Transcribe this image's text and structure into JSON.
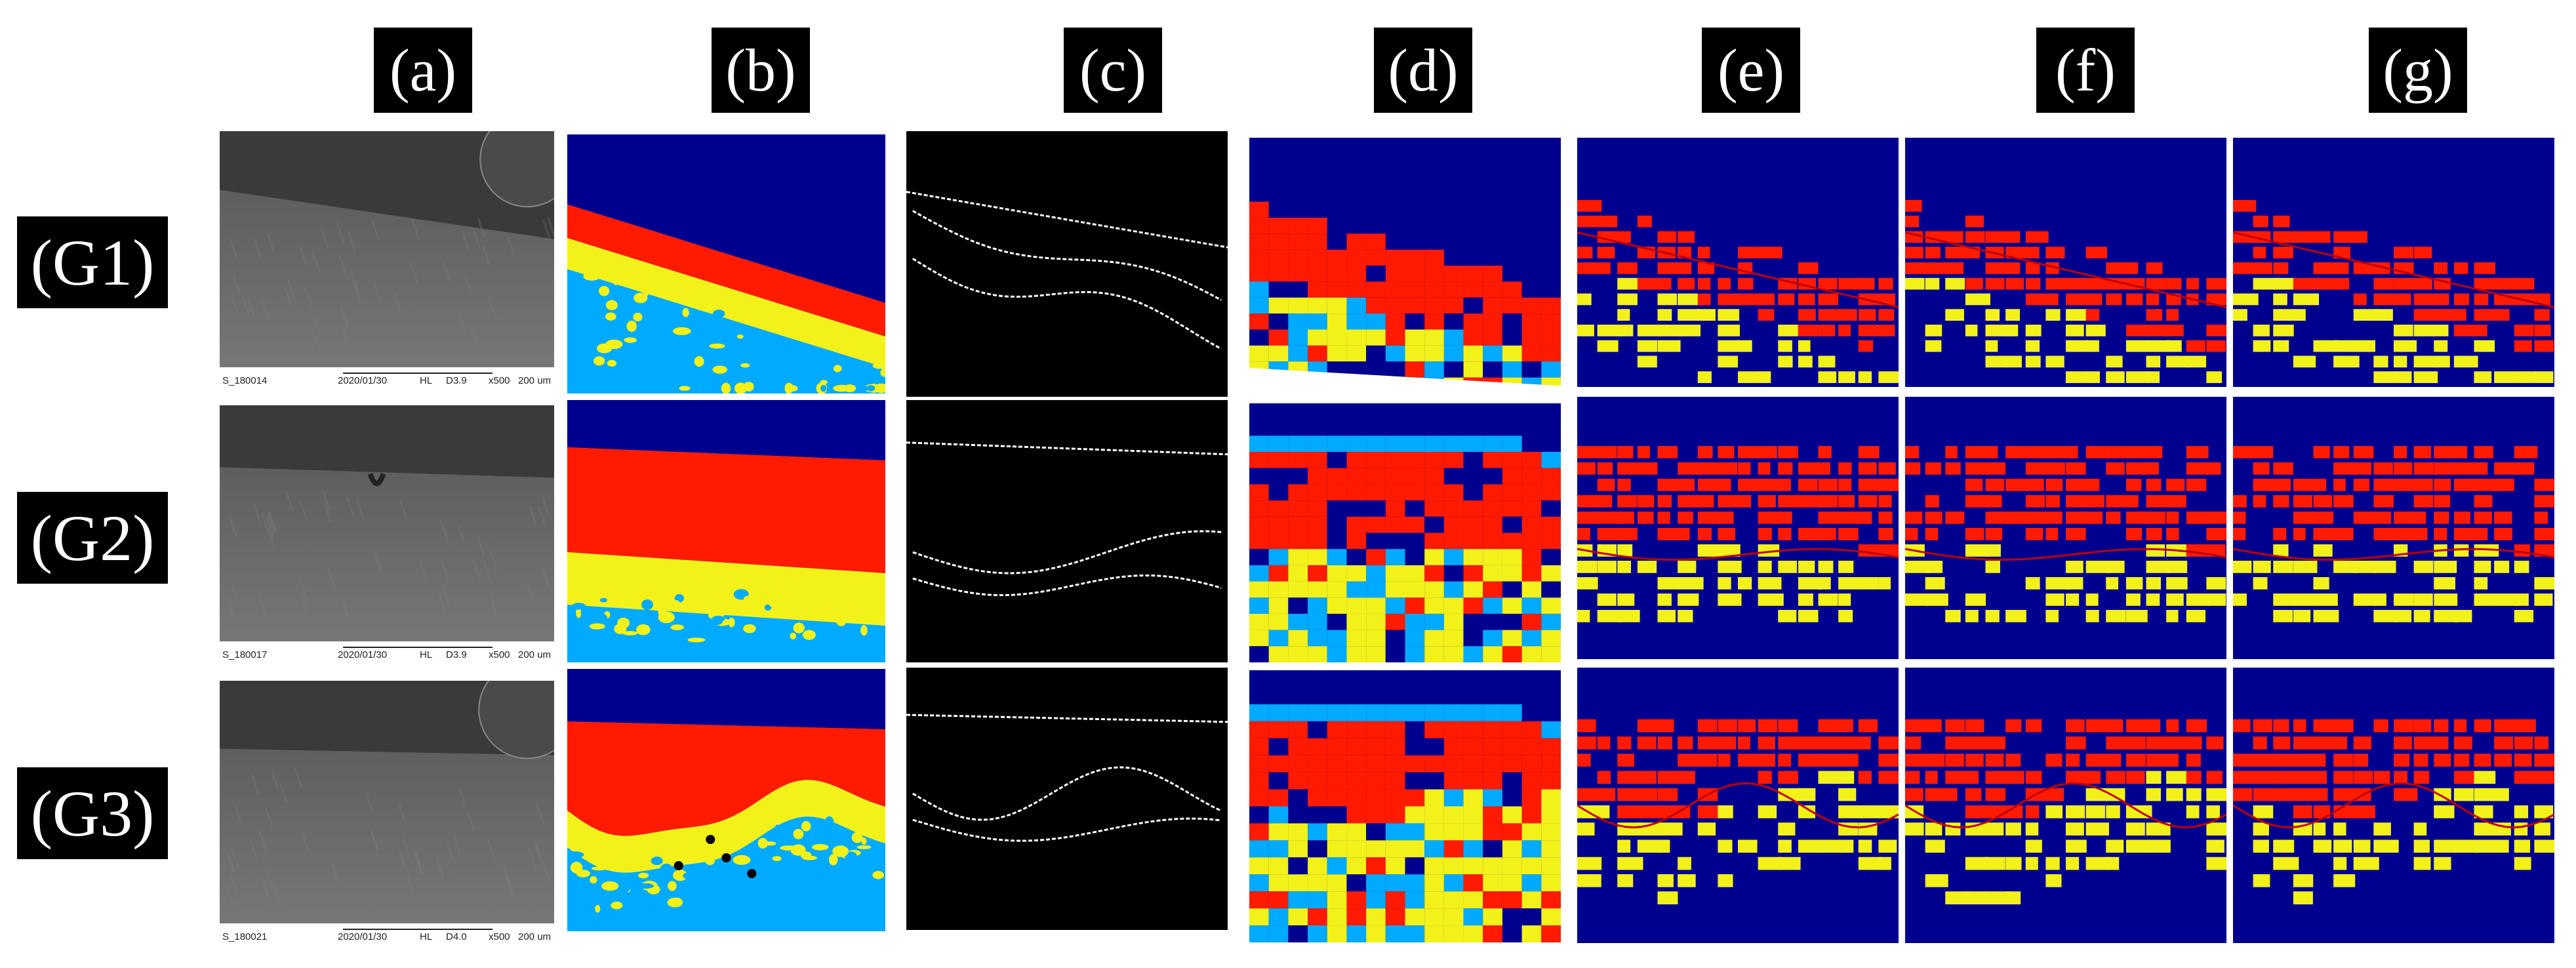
{
  "column_labels": [
    "(a)",
    "(b)",
    "(c)",
    "(d)",
    "(e)",
    "(f)",
    "(g)"
  ],
  "row_labels": [
    "(G1)",
    "(G2)",
    "(G3)"
  ],
  "sem_captions": [
    {
      "id": "S_180014",
      "date": "2020/01/30",
      "mode": "HL",
      "detector": "D3.9",
      "mag": "x500",
      "scale": "200 um"
    },
    {
      "id": "S_180017",
      "date": "2020/01/30",
      "mode": "HL",
      "detector": "D3.9",
      "mag": "x500",
      "scale": "200 um"
    },
    {
      "id": "S_180021",
      "date": "2020/01/30",
      "mode": "HL",
      "detector": "D4.0",
      "mag": "x500",
      "scale": "200 um"
    }
  ],
  "colors": {
    "navy": "#00008f",
    "red": "#ff1a00",
    "yellow": "#f2f21a",
    "cyan": "#00aaff",
    "sem_dark": "#3a3a3a",
    "sem_light": "#6c6c6c",
    "black": "#000000",
    "white": "#ffffff"
  }
}
